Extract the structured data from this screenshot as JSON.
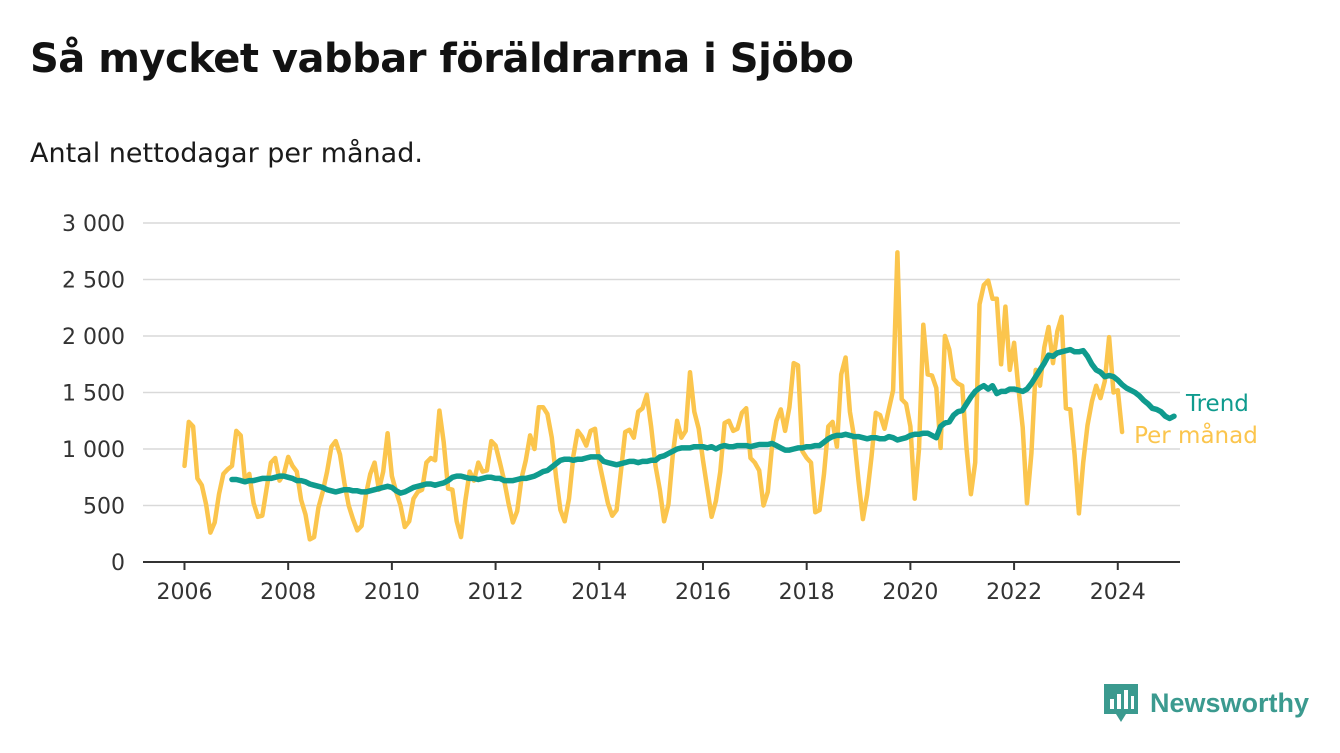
{
  "title": "Så mycket vabbar föräldrarna i Sjöbo",
  "subtitle": "Antal nettodagar per månad.",
  "brand": {
    "name": "Newsworthy",
    "icon": "newsworthy-logo-icon",
    "color": "#3b9a8f"
  },
  "colors": {
    "monthly": "#fbc54d",
    "trend": "#0f9b8e",
    "grid": "#d9d9d9",
    "axis": "#333333"
  },
  "chart_data": {
    "type": "line",
    "xlim": [
      2005.2,
      2025.2
    ],
    "ylim": [
      0,
      3000
    ],
    "x_ticks": [
      2006,
      2008,
      2010,
      2012,
      2014,
      2016,
      2018,
      2020,
      2022,
      2024
    ],
    "x_tick_labels": [
      "2006",
      "2008",
      "2010",
      "2012",
      "2014",
      "2016",
      "2018",
      "2020",
      "2022",
      "2024"
    ],
    "y_ticks": [
      0,
      500,
      1000,
      1500,
      2000,
      2500,
      3000
    ],
    "y_tick_labels": [
      "0",
      "500",
      "1 000",
      "1 500",
      "2 000",
      "2 500",
      "3 000"
    ],
    "grid": "horizontal",
    "series": [
      {
        "name": "Per månad",
        "start": "2006-01",
        "values": [
          850,
          1240,
          1200,
          740,
          680,
          510,
          260,
          350,
          600,
          780,
          820,
          850,
          1160,
          1120,
          720,
          780,
          520,
          400,
          410,
          650,
          880,
          920,
          720,
          780,
          930,
          850,
          800,
          550,
          420,
          200,
          220,
          480,
          620,
          800,
          1020,
          1070,
          950,
          700,
          500,
          380,
          280,
          320,
          600,
          780,
          880,
          640,
          800,
          1140,
          760,
          620,
          500,
          310,
          360,
          560,
          620,
          640,
          880,
          920,
          900,
          1340,
          1060,
          650,
          640,
          360,
          220,
          540,
          800,
          720,
          880,
          800,
          810,
          1070,
          1030,
          880,
          720,
          520,
          350,
          450,
          740,
          900,
          1120,
          1000,
          1370,
          1370,
          1310,
          1100,
          750,
          460,
          360,
          560,
          940,
          1160,
          1110,
          1030,
          1160,
          1180,
          880,
          700,
          520,
          410,
          460,
          800,
          1150,
          1170,
          1100,
          1330,
          1360,
          1480,
          1200,
          850,
          640,
          360,
          510,
          940,
          1250,
          1100,
          1160,
          1680,
          1330,
          1180,
          900,
          650,
          400,
          540,
          800,
          1230,
          1250,
          1160,
          1180,
          1320,
          1360,
          920,
          880,
          810,
          500,
          620,
          1030,
          1250,
          1350,
          1160,
          1370,
          1760,
          1740,
          980,
          920,
          880,
          440,
          460,
          780,
          1200,
          1240,
          1020,
          1660,
          1810,
          1330,
          1100,
          720,
          380,
          600,
          930,
          1320,
          1300,
          1180,
          1350,
          1520,
          2740,
          1440,
          1400,
          1200,
          560,
          1000,
          2100,
          1660,
          1650,
          1540,
          1010,
          2000,
          1880,
          1620,
          1580,
          1560,
          1000,
          600,
          880,
          2280,
          2450,
          2490,
          2330,
          2330,
          1750,
          2260,
          1700,
          1940,
          1540,
          1190,
          520,
          960,
          1700,
          1560,
          1900,
          2080,
          1760,
          2040,
          2170,
          1360,
          1350,
          950,
          430,
          880,
          1210,
          1420,
          1560,
          1450,
          1600,
          1990,
          1500,
          1520,
          1150
        ]
      },
      {
        "name": "Trend",
        "start": "2006-12",
        "values": [
          730,
          730,
          720,
          710,
          720,
          720,
          730,
          740,
          740,
          740,
          750,
          760,
          760,
          750,
          740,
          720,
          720,
          710,
          690,
          680,
          670,
          660,
          640,
          630,
          620,
          630,
          640,
          640,
          630,
          630,
          620,
          620,
          630,
          640,
          650,
          660,
          670,
          660,
          630,
          610,
          620,
          640,
          660,
          670,
          680,
          690,
          690,
          680,
          690,
          700,
          720,
          750,
          760,
          760,
          750,
          740,
          740,
          730,
          740,
          750,
          750,
          740,
          740,
          720,
          720,
          720,
          730,
          740,
          740,
          750,
          760,
          780,
          800,
          810,
          840,
          870,
          900,
          910,
          910,
          900,
          910,
          910,
          920,
          930,
          930,
          930,
          890,
          880,
          870,
          860,
          870,
          880,
          890,
          890,
          880,
          890,
          890,
          900,
          900,
          930,
          940,
          960,
          980,
          1000,
          1010,
          1010,
          1010,
          1020,
          1020,
          1020,
          1010,
          1020,
          1000,
          1020,
          1030,
          1020,
          1020,
          1030,
          1030,
          1030,
          1020,
          1030,
          1040,
          1040,
          1040,
          1050,
          1030,
          1010,
          990,
          990,
          1000,
          1010,
          1010,
          1020,
          1020,
          1030,
          1030,
          1060,
          1090,
          1110,
          1120,
          1120,
          1130,
          1120,
          1110,
          1110,
          1100,
          1090,
          1100,
          1100,
          1090,
          1090,
          1110,
          1100,
          1080,
          1090,
          1100,
          1120,
          1130,
          1130,
          1140,
          1140,
          1120,
          1100,
          1200,
          1230,
          1240,
          1300,
          1330,
          1340,
          1400,
          1460,
          1510,
          1540,
          1560,
          1530,
          1560,
          1490,
          1510,
          1510,
          1530,
          1530,
          1520,
          1510,
          1530,
          1580,
          1640,
          1700,
          1760,
          1830,
          1820,
          1850,
          1860,
          1870,
          1880,
          1860,
          1860,
          1870,
          1820,
          1750,
          1700,
          1680,
          1640,
          1650,
          1640,
          1610,
          1570,
          1540,
          1520,
          1500,
          1470,
          1430,
          1400,
          1360,
          1350,
          1330,
          1290,
          1270,
          1290
        ]
      }
    ]
  }
}
